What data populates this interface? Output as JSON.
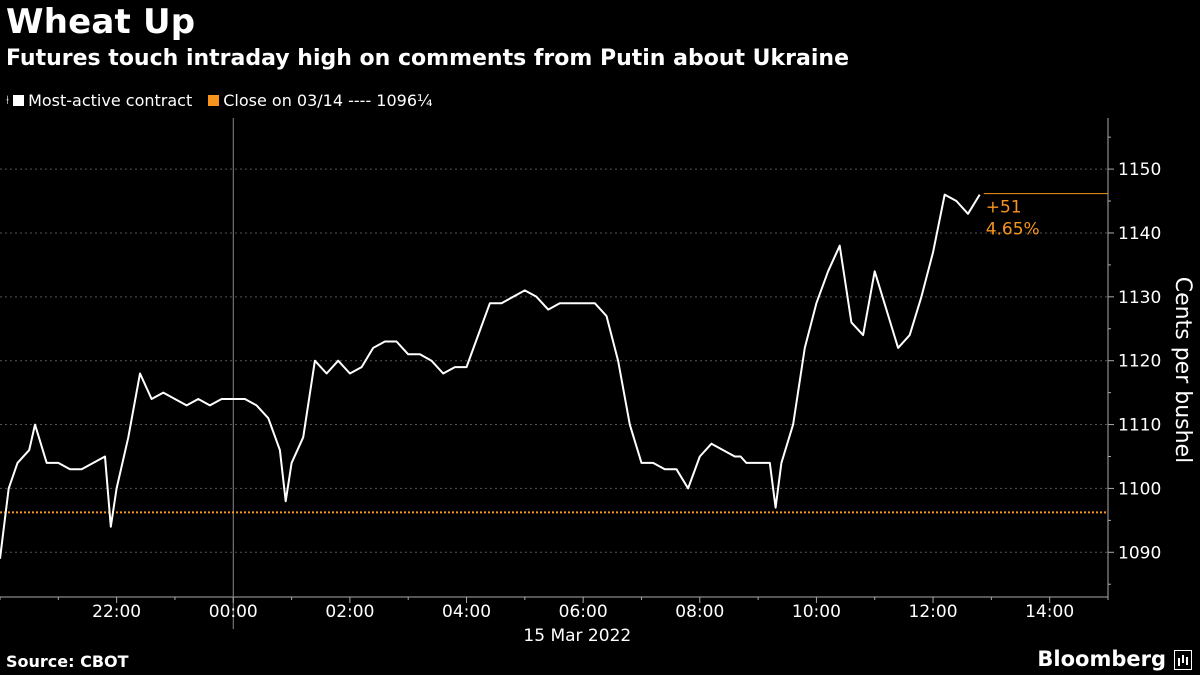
{
  "title": "Wheat Up",
  "subtitle": "Futures touch intraday high on comments from Putin about Ukraine",
  "legend": {
    "series_label": "Most-active contract",
    "close_label": "Close on 03/14 ---- 1096¼",
    "series_color": "#ffffff",
    "close_color": "#f7941d",
    "candle_icon": "candlestick-icon"
  },
  "footer": {
    "source": "Source: CBOT",
    "brand": "Bloomberg",
    "brand_icon": "terminal-icon"
  },
  "chart_data": {
    "type": "line",
    "ylabel": "Cents per bushel",
    "xlabel_date": "15 Mar 2022",
    "ylim": [
      1083,
      1158
    ],
    "yticks": [
      1090,
      1100,
      1110,
      1120,
      1130,
      1140,
      1150
    ],
    "x_ticks": [
      "22:00",
      "00:00",
      "02:00",
      "04:00",
      "06:00",
      "08:00",
      "10:00",
      "12:00",
      "14:00"
    ],
    "x_tick_hours": [
      22,
      24,
      26,
      28,
      30,
      32,
      34,
      36,
      38
    ],
    "xlim_hours": [
      20.0,
      39.0
    ],
    "prev_close": 1096.25,
    "change_label": "+51",
    "change_pct_label": "4.65%",
    "series": [
      {
        "x": [
          20.0,
          20.15,
          20.3,
          20.5,
          20.6,
          20.8,
          21.0,
          21.2,
          21.4,
          21.6,
          21.8,
          21.9,
          22.0,
          22.2,
          22.4,
          22.6,
          22.8,
          23.0,
          23.2,
          23.4,
          23.6,
          23.8,
          24.0,
          24.2,
          24.4,
          24.6,
          24.8,
          24.9,
          25.0,
          25.2,
          25.4,
          25.6,
          25.8,
          26.0,
          26.2,
          26.4,
          26.6,
          26.8,
          27.0,
          27.2,
          27.4,
          27.6,
          27.8,
          28.0,
          28.2,
          28.4,
          28.6,
          28.8,
          29.0,
          29.2,
          29.4,
          29.6,
          29.8,
          30.0,
          30.2,
          30.4,
          30.6,
          30.8,
          31.0,
          31.2,
          31.4,
          31.6,
          31.8,
          32.0,
          32.2,
          32.4,
          32.6,
          32.7,
          32.8,
          33.2,
          33.3,
          33.4,
          33.6,
          33.8,
          34.0,
          34.2,
          34.4,
          34.6,
          34.8,
          35.0,
          35.2,
          35.4,
          35.6,
          35.8,
          36.0,
          36.2,
          36.4,
          36.6,
          36.8
        ],
        "y": [
          1089,
          1100,
          1104,
          1106,
          1110,
          1104,
          1104,
          1103,
          1103,
          1104,
          1105,
          1094,
          1100,
          1108,
          1118,
          1114,
          1115,
          1114,
          1113,
          1114,
          1113,
          1114,
          1114,
          1114,
          1113,
          1111,
          1106,
          1098,
          1104,
          1108,
          1120,
          1118,
          1120,
          1118,
          1119,
          1122,
          1123,
          1123,
          1121,
          1121,
          1120,
          1118,
          1119,
          1119,
          1124,
          1129,
          1129,
          1130,
          1131,
          1130,
          1128,
          1129,
          1129,
          1129,
          1129,
          1127,
          1120,
          1110,
          1104,
          1104,
          1103,
          1103,
          1100,
          1105,
          1107,
          1106,
          1105,
          1105,
          1104,
          1104,
          1097,
          1104,
          1110,
          1122,
          1129,
          1134,
          1138,
          1126,
          1124,
          1134,
          1128,
          1122,
          1124,
          1130,
          1137,
          1146,
          1145,
          1143,
          1146
        ]
      }
    ]
  }
}
